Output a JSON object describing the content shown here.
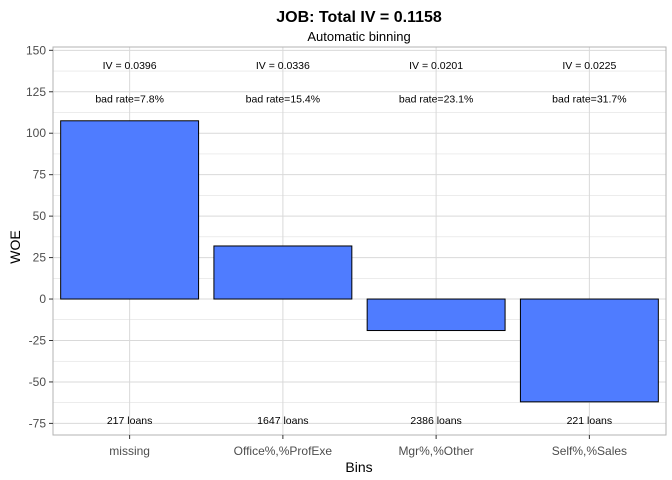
{
  "chart_data": {
    "type": "bar",
    "title": "JOB: Total IV = 0.1158",
    "subtitle": "Automatic binning",
    "xlabel": "Bins",
    "ylabel": "WOE",
    "categories": [
      "missing",
      "Office%,%ProfExe",
      "Mgr%,%Other",
      "Self%,%Sales"
    ],
    "values": [
      107.5,
      32,
      -19,
      -62
    ],
    "ylim": [
      -82,
      152
    ],
    "yticks": [
      -75,
      -50,
      -25,
      0,
      25,
      50,
      75,
      100,
      125,
      150
    ],
    "ytick_labels": [
      "-75",
      "-50",
      "-25",
      "0",
      "25",
      "50",
      "75",
      "100",
      "125",
      "150"
    ],
    "iv_labels": [
      "IV = 0.0396",
      "IV = 0.0336",
      "IV = 0.0201",
      "IV = 0.0225"
    ],
    "iv_label_y": 141,
    "bad_rate_labels": [
      "bad rate=7.8%",
      "bad rate=15.4%",
      "bad rate=23.1%",
      "bad rate=31.7%"
    ],
    "bad_rate_label_y": 121,
    "count_labels": [
      "217 loans",
      "1647 loans",
      "2386 loans",
      "221 loans"
    ],
    "count_label_y": -73,
    "grid": true,
    "bar_color": "#4f7cff",
    "bar_edge_color": "#000000",
    "grid_color": "#d9d9d9",
    "panel_border_color": "#b3b3b3"
  }
}
